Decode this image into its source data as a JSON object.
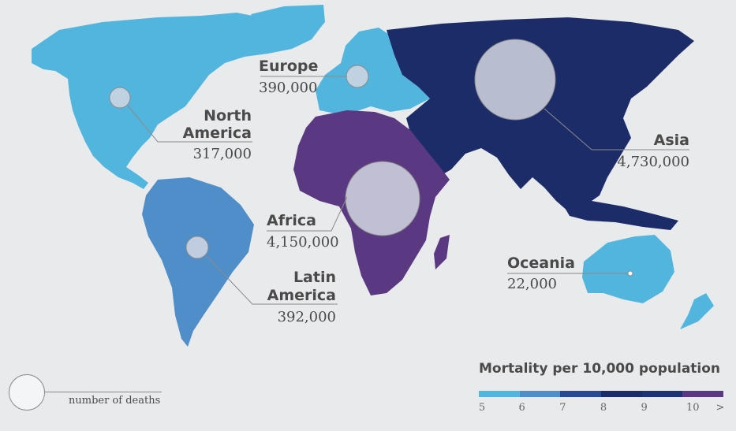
{
  "regions": [
    {
      "id": "north-america",
      "name_lines": [
        "North",
        "America"
      ],
      "deaths": "317,000",
      "color": "#52b5dd"
    },
    {
      "id": "europe",
      "name_lines": [
        "Europe"
      ],
      "deaths": "390,000",
      "color": "#52b5dd"
    },
    {
      "id": "asia",
      "name_lines": [
        "Asia"
      ],
      "deaths": "4,730,000",
      "color": "#1c2c69"
    },
    {
      "id": "africa",
      "name_lines": [
        "Africa"
      ],
      "deaths": "4,150,000",
      "color": "#5a3882"
    },
    {
      "id": "latin-america",
      "name_lines": [
        "Latin",
        "America"
      ],
      "deaths": "392,000",
      "color": "#4f8ec8"
    },
    {
      "id": "oceania",
      "name_lines": [
        "Oceania"
      ],
      "deaths": "22,000",
      "color": "#52b5dd"
    }
  ],
  "legend": {
    "title": "Mortality per 10,000 population",
    "scale_colors": [
      "#52b5dd",
      "#4f8ec8",
      "#294a93",
      "#1c2c69",
      "#1e3373",
      "#5a3882"
    ],
    "tick_labels": [
      "5",
      "6",
      "7",
      "8",
      "9",
      "10",
      ">"
    ],
    "size_key_label": "number of deaths"
  }
}
